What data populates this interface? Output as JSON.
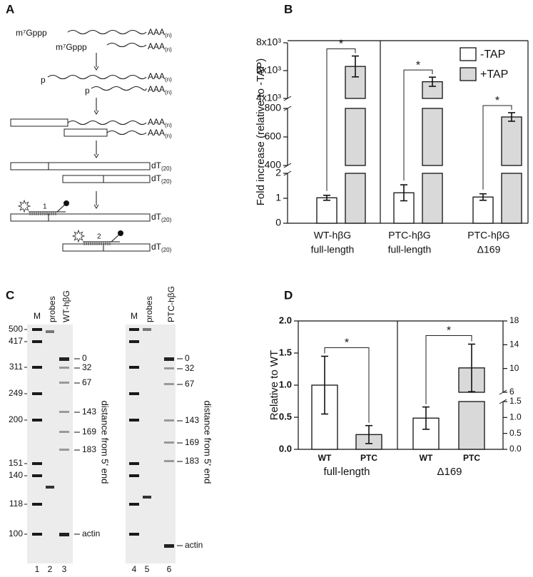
{
  "panel_labels": [
    "A",
    "B",
    "C",
    "D"
  ],
  "diagram": {
    "cap": "m⁷Gppp",
    "phosphate": "p",
    "poly_a": {
      "base": "AAA",
      "sub": "(n)"
    },
    "oligo_dt": {
      "base": "dT",
      "sub": "(20)"
    },
    "probes": [
      "1",
      "2"
    ]
  },
  "gels": [
    {
      "lanes": [
        "M",
        "probes",
        "WT-hβG"
      ],
      "markers": [
        "500",
        "417",
        "311",
        "249",
        "200",
        "151",
        "140",
        "118",
        "100"
      ],
      "positions": [
        "0",
        "32",
        "67",
        "143",
        "169",
        "183",
        "actin"
      ],
      "axis_label": "distance from 5' end",
      "lane_numbers": [
        "1",
        "2",
        "3"
      ]
    },
    {
      "lanes": [
        "M",
        "probes",
        "PTC-hβG"
      ],
      "positions": [
        "0",
        "32",
        "67",
        "143",
        "169",
        "183",
        "actin"
      ],
      "axis_label": "distance from 5' end",
      "lane_numbers": [
        "4",
        "5",
        "6"
      ]
    }
  ],
  "chart_data": [
    {
      "type": "broken-bar",
      "y_label": "Fold increase (relative to -TAP)",
      "categories": [
        [
          "WT-hβG",
          "full-length"
        ],
        [
          "PTC-hβG",
          "full-length"
        ],
        [
          "PTC-hβG",
          "Δ169"
        ]
      ],
      "series": [
        {
          "name": "-TAP",
          "color": "#ffffff",
          "values": [
            1.02,
            1.22,
            1.05
          ],
          "errors": [
            0.1,
            0.32,
            0.13
          ]
        },
        {
          "name": "+TAP",
          "color": "#d9d9d9",
          "values": [
            6300,
            5200,
            740
          ],
          "errors": [
            750,
            330,
            30
          ]
        }
      ],
      "significance": [
        "*",
        "*",
        "*"
      ],
      "y_segments": [
        {
          "ylim": [
            0,
            2
          ],
          "yticks": [
            0,
            1,
            2
          ]
        },
        {
          "ylim": [
            400,
            800
          ],
          "yticks": [
            400,
            600,
            800
          ]
        },
        {
          "ylim": [
            4000,
            8000
          ],
          "yticks": [
            {
              "value": 4000,
              "label": "4x10³"
            },
            {
              "value": 6000,
              "label": "6x10³"
            },
            {
              "value": 8000,
              "label": "8x10³"
            }
          ]
        }
      ],
      "legend": "top-right"
    },
    {
      "type": "dual-axis-bar",
      "y_label": "Relative to WT",
      "groups": [
        {
          "label": "full-length",
          "axis": "y",
          "categories": [
            "WT",
            "PTC"
          ],
          "values": [
            1.0,
            0.23
          ],
          "errors": [
            0.45,
            0.14
          ],
          "colors": [
            "#ffffff",
            "#d9d9d9"
          ],
          "significance": "*"
        },
        {
          "label": "Δ169",
          "axis": "y2",
          "categories": [
            "WT",
            "PTC"
          ],
          "values": [
            0.98,
            10.1
          ],
          "errors": [
            0.35,
            4.0
          ],
          "colors": [
            "#ffffff",
            "#d9d9d9"
          ],
          "significance": "*"
        }
      ],
      "ylim": [
        0,
        2
      ],
      "yticks": [
        {
          "value": 0,
          "label": "0.0"
        },
        {
          "value": 0.5,
          "label": "0.5"
        },
        {
          "value": 1,
          "label": "1.0"
        },
        {
          "value": 1.5,
          "label": "1.5"
        },
        {
          "value": 2,
          "label": "2.0"
        }
      ],
      "y2_segments": [
        {
          "ylim": [
            0,
            1.5
          ],
          "yticks": [
            {
              "value": 0,
              "label": "0.0"
            },
            {
              "value": 0.5,
              "label": "0.5"
            },
            {
              "value": 1,
              "label": "1.0"
            },
            {
              "value": 1.5,
              "label": "1.5"
            }
          ]
        },
        {
          "ylim": [
            6,
            18
          ],
          "yticks": [
            6,
            10,
            14,
            18
          ]
        }
      ]
    }
  ]
}
